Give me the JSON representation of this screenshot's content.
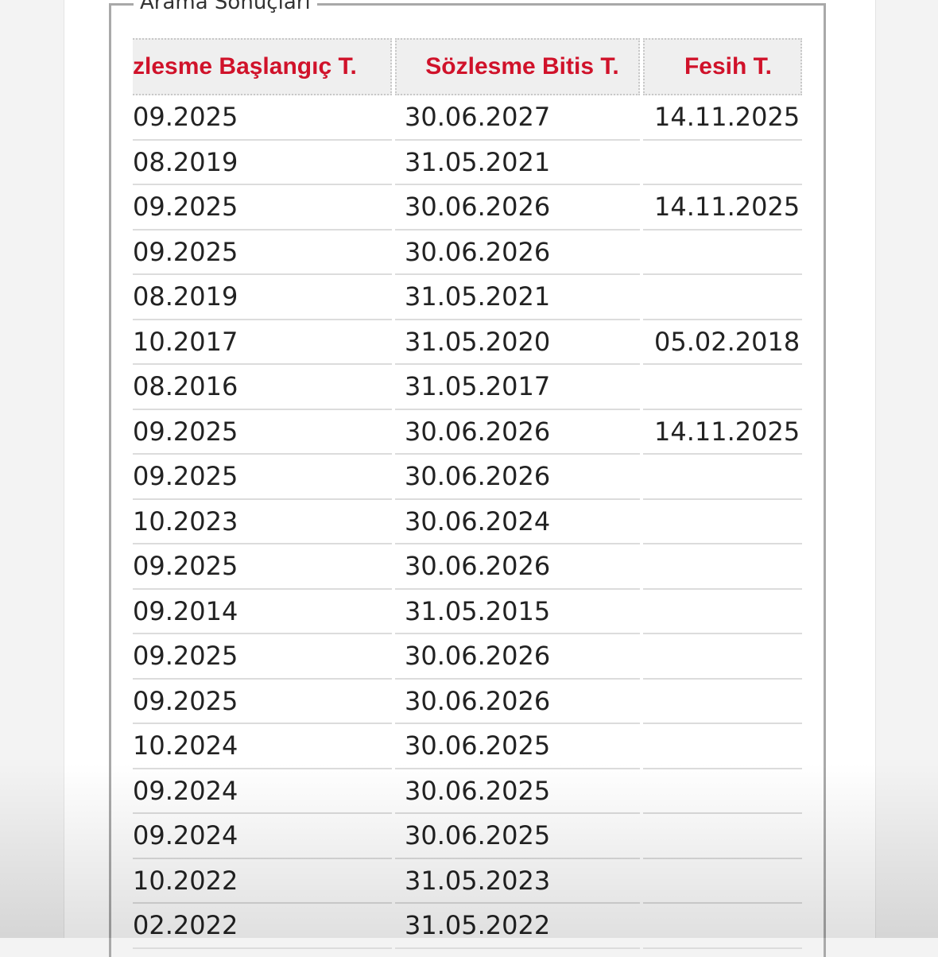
{
  "section_title": "Arama Sonuçları",
  "columns": [
    "zlesme Başlangıç T.",
    "Sözlesme Bitis T.",
    "Fesih T."
  ],
  "rows": [
    [
      "09.2025",
      "30.06.2027",
      "14.11.2025"
    ],
    [
      "08.2019",
      "31.05.2021",
      ""
    ],
    [
      "09.2025",
      "30.06.2026",
      "14.11.2025"
    ],
    [
      "09.2025",
      "30.06.2026",
      ""
    ],
    [
      "08.2019",
      "31.05.2021",
      ""
    ],
    [
      "10.2017",
      "31.05.2020",
      "05.02.2018"
    ],
    [
      "08.2016",
      "31.05.2017",
      ""
    ],
    [
      "09.2025",
      "30.06.2026",
      "14.11.2025"
    ],
    [
      "09.2025",
      "30.06.2026",
      ""
    ],
    [
      "10.2023",
      "30.06.2024",
      ""
    ],
    [
      "09.2025",
      "30.06.2026",
      ""
    ],
    [
      "09.2014",
      "31.05.2015",
      ""
    ],
    [
      "09.2025",
      "30.06.2026",
      ""
    ],
    [
      "09.2025",
      "30.06.2026",
      ""
    ],
    [
      "10.2024",
      "30.06.2025",
      ""
    ],
    [
      "09.2024",
      "30.06.2025",
      ""
    ],
    [
      "09.2024",
      "30.06.2025",
      ""
    ],
    [
      "10.2022",
      "31.05.2023",
      ""
    ],
    [
      "02.2022",
      "31.05.2022",
      ""
    ]
  ],
  "colors": {
    "header_text": "#d0122a",
    "header_bg": "#efefef"
  }
}
